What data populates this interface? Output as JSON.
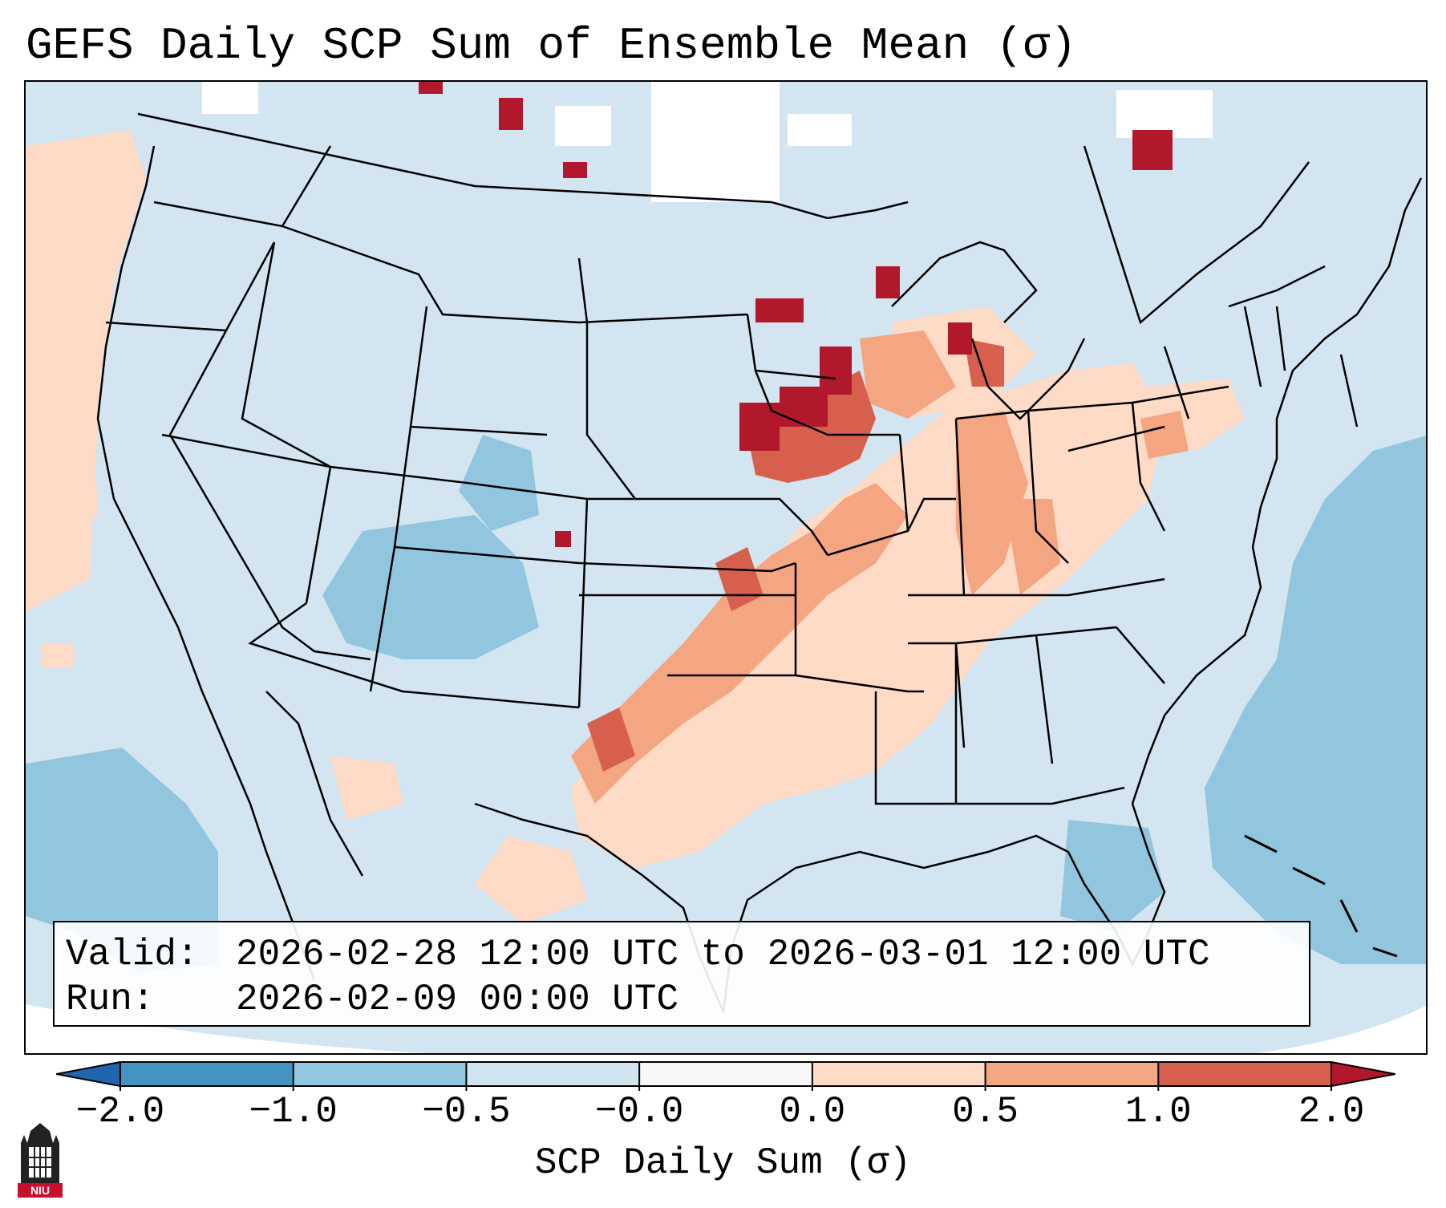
{
  "title": "GEFS Daily SCP Sum of Ensemble Mean (σ)",
  "info": {
    "valid_label": "Valid:",
    "valid_value": "2026-02-28 12:00 UTC to 2026-03-01 12:00 UTC",
    "run_label": "Run:",
    "run_value": "2026-02-09 00:00 UTC"
  },
  "colorbar": {
    "label": "SCP Daily Sum (σ)",
    "ticks": [
      "−2.0",
      "−1.0",
      "−0.5",
      "−0.0",
      "0.0",
      "0.5",
      "1.0",
      "2.0"
    ],
    "bins": [
      {
        "from": "-2.0",
        "to": "-1.0",
        "color": "#4393c3"
      },
      {
        "from": "-1.0",
        "to": "-0.5",
        "color": "#92c5de"
      },
      {
        "from": "-0.5",
        "to": "-0.0",
        "color": "#d1e5f0"
      },
      {
        "from": "-0.0",
        "to": "0.0",
        "color": "#f7f7f7"
      },
      {
        "from": "0.0",
        "to": "0.5",
        "color": "#fddbc7"
      },
      {
        "from": "0.5",
        "to": "1.0",
        "color": "#f4a582"
      },
      {
        "from": "1.0",
        "to": "2.0",
        "color": "#d6604d"
      }
    ],
    "under_color": "#2166ac",
    "over_color": "#b2182b"
  },
  "logo": {
    "text": "NIU",
    "color": "#c8102e"
  }
}
